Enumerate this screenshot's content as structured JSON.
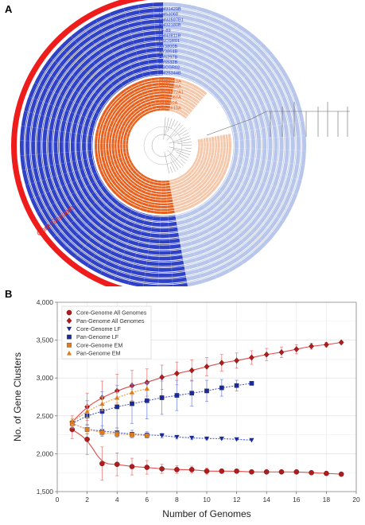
{
  "panel_a": {
    "letter": "A",
    "core_label": "Core-Genome",
    "blue_strains": [
      "PM31429B",
      "PM53068",
      "PM32597B1",
      "PM32180B",
      "LF-89",
      "PM43811B",
      "PSCGR01",
      "AY3800B",
      "AY3864B",
      "AY6297B",
      "AY6532B",
      "PSCGR02",
      "PM25344B"
    ],
    "orange_strains": [
      "PM23019A",
      "PM37984A",
      "PM15972A1",
      "PM21567A",
      "AY6450A",
      "PM33819A"
    ],
    "colors": {
      "dark_blue": "#2f41c6",
      "light_blue": "#b8c6ec",
      "orange": "#e8601c",
      "light_orange": "#f6c6a8",
      "red": "#ef1c1c"
    }
  },
  "panel_b": {
    "letter": "B"
  },
  "chart_data": {
    "type": "scatter",
    "xlabel": "Number of Genomes",
    "ylabel": "No. of Gene Clusters",
    "xlim": [
      0,
      20
    ],
    "ylim": [
      1500,
      4000
    ],
    "x_ticks": [
      0,
      2,
      4,
      6,
      8,
      10,
      12,
      14,
      16,
      18,
      20
    ],
    "y_ticks": [
      1500,
      2000,
      2500,
      3000,
      3500,
      4000
    ],
    "y_tick_labels": [
      "1,500",
      "2,000",
      "2,500",
      "3,000",
      "3,500",
      "4,000"
    ],
    "grid": true,
    "legend_position": "top-left",
    "series": [
      {
        "name": "Core-Genome All Genomes",
        "marker": "circle",
        "color": "#b01c1c",
        "x": [
          1,
          2,
          3,
          4,
          5,
          6,
          7,
          8,
          9,
          10,
          11,
          12,
          13,
          14,
          15,
          16,
          17,
          18,
          19
        ],
        "y": [
          2320,
          2190,
          1870,
          1860,
          1830,
          1820,
          1800,
          1790,
          1790,
          1770,
          1770,
          1770,
          1760,
          1760,
          1760,
          1760,
          1750,
          1740,
          1730
        ],
        "err": [
          120,
          200,
          220,
          150,
          110,
          90,
          60,
          50,
          45,
          40,
          30,
          25,
          20,
          20,
          15,
          12,
          10,
          8,
          0
        ]
      },
      {
        "name": "Pan-Genome All Genomes",
        "marker": "diamond",
        "color": "#b01c1c",
        "x": [
          1,
          2,
          3,
          4,
          5,
          6,
          7,
          8,
          9,
          10,
          11,
          12,
          13,
          14,
          15,
          16,
          17,
          18,
          19
        ],
        "y": [
          2420,
          2620,
          2740,
          2830,
          2900,
          2940,
          3010,
          3060,
          3100,
          3150,
          3200,
          3230,
          3270,
          3310,
          3340,
          3380,
          3420,
          3440,
          3470
        ],
        "err": [
          80,
          180,
          220,
          220,
          200,
          180,
          160,
          150,
          140,
          120,
          110,
          100,
          90,
          80,
          70,
          60,
          40,
          30,
          0
        ]
      },
      {
        "name": "Core-Genome LF",
        "marker": "triangle-down",
        "color": "#1a2a9c",
        "x": [
          1,
          2,
          3,
          4,
          5,
          6,
          7,
          8,
          9,
          10,
          11,
          12,
          13
        ],
        "y": [
          2400,
          2320,
          2300,
          2280,
          2260,
          2250,
          2240,
          2220,
          2210,
          2200,
          2200,
          2190,
          2180
        ],
        "err": [
          40,
          60,
          70,
          60,
          50,
          40,
          30,
          25,
          20,
          15,
          12,
          8,
          0
        ]
      },
      {
        "name": "Pan-Genome LF",
        "marker": "square",
        "color": "#1a2a9c",
        "x": [
          1,
          2,
          3,
          4,
          5,
          6,
          7,
          8,
          9,
          10,
          11,
          12,
          13
        ],
        "y": [
          2400,
          2500,
          2560,
          2620,
          2660,
          2700,
          2740,
          2770,
          2800,
          2830,
          2870,
          2900,
          2930
        ],
        "err": [
          60,
          200,
          260,
          280,
          260,
          240,
          220,
          200,
          170,
          140,
          110,
          70,
          0
        ]
      },
      {
        "name": "Core-Genome EM",
        "marker": "square",
        "color": "#e07a1a",
        "x": [
          1,
          2,
          3,
          4,
          5,
          6
        ],
        "y": [
          2400,
          2320,
          2280,
          2260,
          2250,
          2240
        ],
        "err": [
          40,
          50,
          40,
          30,
          20,
          0
        ]
      },
      {
        "name": "Pan-Genome EM",
        "marker": "triangle-up",
        "color": "#e07a1a",
        "x": [
          1,
          2,
          3,
          4,
          5,
          6
        ],
        "y": [
          2420,
          2560,
          2660,
          2740,
          2810,
          2860
        ],
        "err": [
          40,
          80,
          90,
          70,
          40,
          0
        ]
      }
    ]
  }
}
